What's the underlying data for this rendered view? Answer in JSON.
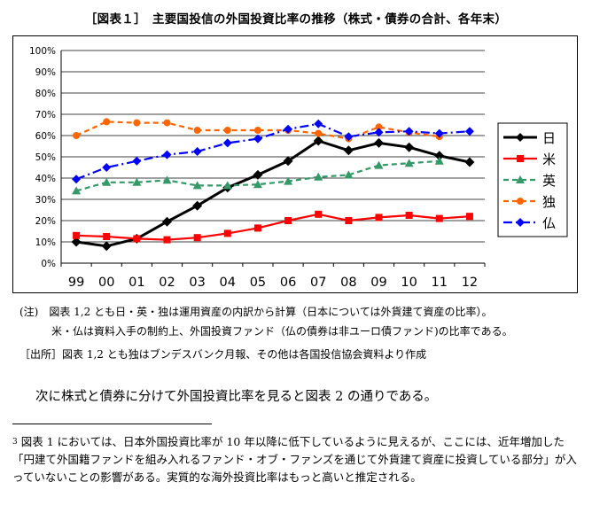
{
  "title": "［図表１］　主要国投信の外国投資比率の推移（株式・債券の合計、各年末）",
  "chart_data": {
    "type": "line",
    "categories": [
      "99",
      "00",
      "01",
      "02",
      "03",
      "04",
      "05",
      "06",
      "07",
      "08",
      "09",
      "10",
      "11",
      "12"
    ],
    "y_ticks": [
      "0%",
      "10%",
      "20%",
      "30%",
      "40%",
      "50%",
      "60%",
      "70%",
      "80%",
      "90%",
      "100%"
    ],
    "ylim": [
      0,
      100
    ],
    "grid": "horizontal",
    "legend_position": "right",
    "series": [
      {
        "name": "日",
        "color": "#000000",
        "dash": "solid",
        "marker": "diamond",
        "values": [
          10,
          8,
          11.5,
          19.5,
          27,
          35.5,
          41.5,
          48,
          57.5,
          53,
          56.5,
          54.5,
          50.5,
          47.5
        ]
      },
      {
        "name": "米",
        "color": "#ff0000",
        "dash": "solid",
        "marker": "square",
        "values": [
          13,
          12.5,
          11.5,
          11,
          12,
          14,
          16.5,
          20,
          23,
          20,
          21.5,
          22.5,
          21,
          22
        ]
      },
      {
        "name": "英",
        "color": "#339966",
        "dash": "dashed",
        "marker": "triangle",
        "values": [
          34,
          38,
          38,
          39,
          36.5,
          36.5,
          37,
          38.5,
          40.5,
          41.5,
          46,
          47,
          48,
          null
        ]
      },
      {
        "name": "独",
        "color": "#ff6600",
        "dash": "dashed",
        "marker": "circle",
        "values": [
          60,
          66.5,
          66,
          66,
          62.5,
          62.5,
          62.5,
          62.5,
          61,
          58.5,
          64,
          61.5,
          59.5,
          null
        ]
      },
      {
        "name": "仏",
        "color": "#0000ff",
        "dash": "dashdot",
        "marker": "diamond",
        "values": [
          39.5,
          45,
          48,
          51,
          52.5,
          56.5,
          58.5,
          63,
          65.5,
          59.5,
          61.5,
          62,
          61,
          62
        ]
      }
    ]
  },
  "notes": {
    "note1": "(注)　図表 1,2 とも日・英・独は運用資産の内訳から計算（日本については外貨建て資産の比率）。",
    "note2": "米・仏は資料入手の制約上、外国投資ファンド（仏の債券は非ユーロ債ファンド)の比率である。",
    "note3": "［出所］図表 1,2 とも独はブンデスバンク月報、その他は各国投信協会資料より作成"
  },
  "paragraph": "次に株式と債券に分けて外国投資比率を見ると図表 2 の通りである。",
  "footnote": {
    "mark": "3",
    "text": "図表 1 においては、日本外国投資比率が 10 年以降に低下しているように見えるが、ここには、近年増加した「円建て外国籍ファンドを組み入れるファンド・オブ・ファンズを通じて外貨建て資産に投資している部分」が入っていないことの影響がある。実質的な海外投資比率はもっと高いと推定される。"
  }
}
